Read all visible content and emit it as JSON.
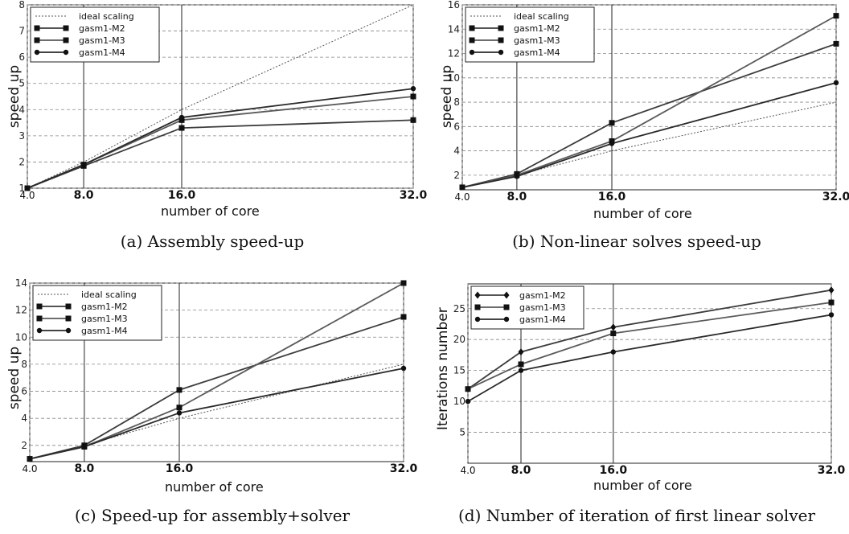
{
  "figure": {
    "captions": [
      "(a)  Assembly speed-up",
      "(b)  Non-linear solves speed-up",
      "(c)  Speed-up for assembly+solver",
      "(d)  Number of iteration of first linear solver"
    ]
  },
  "chart_data": [
    {
      "type": "line",
      "x": [
        4,
        8,
        16,
        32
      ],
      "xticks": [
        "4.0",
        "8.0",
        "16.0",
        "32.0"
      ],
      "xlabel": "number of core",
      "ylabel": "speed up",
      "ylim": [
        1,
        8
      ],
      "yticks": [
        1,
        2,
        3,
        4,
        5,
        6,
        7,
        8
      ],
      "grid": true,
      "legend": "top-left",
      "series": [
        {
          "name": "ideal scaling",
          "values": [
            1,
            2,
            4,
            8
          ],
          "style": "dotted"
        },
        {
          "name": "gasm1-M2",
          "values": [
            1,
            1.85,
            3.3,
            3.6
          ],
          "marker": "square"
        },
        {
          "name": "gasm1-M3",
          "values": [
            1,
            1.9,
            3.6,
            4.5
          ],
          "marker": "square"
        },
        {
          "name": "gasm1-M4",
          "values": [
            1,
            1.9,
            3.7,
            4.8
          ],
          "marker": "dot"
        }
      ]
    },
    {
      "type": "line",
      "x": [
        4,
        8,
        16,
        32
      ],
      "xticks": [
        "4.0",
        "8.0",
        "16.0",
        "32.0"
      ],
      "xlabel": "number of core",
      "ylabel": "speed up",
      "ylim": [
        0.8,
        16
      ],
      "yticks": [
        2,
        4,
        6,
        8,
        10,
        12,
        14,
        16
      ],
      "grid": true,
      "legend": "top-left",
      "series": [
        {
          "name": "ideal scaling",
          "values": [
            1,
            2,
            4,
            8
          ],
          "style": "dotted"
        },
        {
          "name": "gasm1-M2",
          "values": [
            1,
            2.1,
            6.3,
            12.8
          ],
          "marker": "square"
        },
        {
          "name": "gasm1-M3",
          "values": [
            1,
            2.0,
            4.8,
            15.1
          ],
          "marker": "square"
        },
        {
          "name": "gasm1-M4",
          "values": [
            1,
            1.9,
            4.6,
            9.6
          ],
          "marker": "dot"
        }
      ]
    },
    {
      "type": "line",
      "x": [
        4,
        8,
        16,
        32
      ],
      "xticks": [
        "4.0",
        "8.0",
        "16.0",
        "32.0"
      ],
      "xlabel": "number of core",
      "ylabel": "speed up",
      "ylim": [
        0.8,
        14
      ],
      "yticks": [
        2,
        4,
        6,
        8,
        10,
        12,
        14
      ],
      "grid": true,
      "legend": "top-left",
      "series": [
        {
          "name": "ideal scaling",
          "values": [
            1,
            2,
            4,
            8
          ],
          "style": "dotted"
        },
        {
          "name": "gasm1-M2",
          "values": [
            1,
            2.0,
            6.1,
            11.5
          ],
          "marker": "square"
        },
        {
          "name": "gasm1-M3",
          "values": [
            1,
            1.9,
            4.8,
            14.0
          ],
          "marker": "square"
        },
        {
          "name": "gasm1-M4",
          "values": [
            1,
            1.9,
            4.4,
            7.7
          ],
          "marker": "dot"
        }
      ]
    },
    {
      "type": "line",
      "x": [
        4,
        8,
        16,
        32
      ],
      "xticks": [
        "4.0",
        "8.0",
        "16.0",
        "32.0"
      ],
      "xlabel": "number of core",
      "ylabel": "Iterations number",
      "ylim": [
        0,
        29
      ],
      "yticks": [
        5,
        10,
        15,
        20,
        25
      ],
      "grid": true,
      "legend": "top-left",
      "series": [
        {
          "name": "gasm1-M2",
          "values": [
            12,
            18,
            22,
            28
          ],
          "marker": "diamond"
        },
        {
          "name": "gasm1-M3",
          "values": [
            12,
            16,
            21,
            26
          ],
          "marker": "square"
        },
        {
          "name": "gasm1-M4",
          "values": [
            10,
            15,
            18,
            24
          ],
          "marker": "dot"
        }
      ]
    }
  ]
}
